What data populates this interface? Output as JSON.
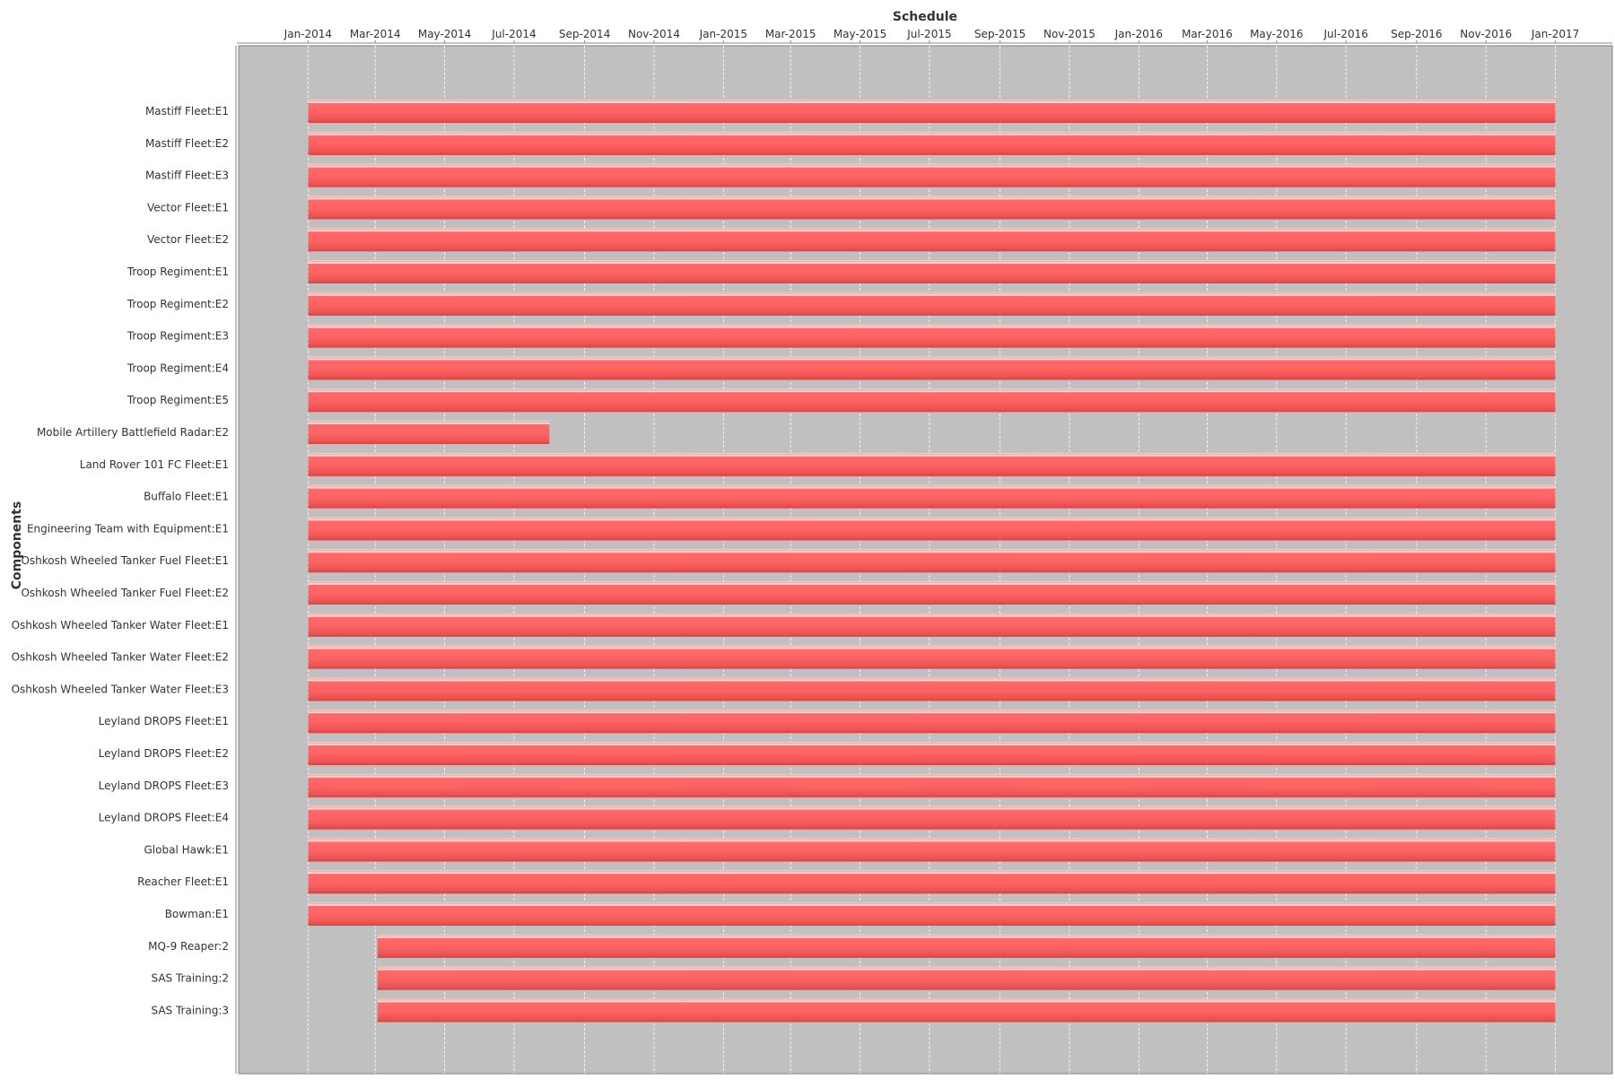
{
  "chart_data": {
    "type": "gantt",
    "title": "Schedule",
    "xlabel": "Schedule",
    "ylabel": "Components",
    "x_axis_position": "top",
    "x_range": [
      "2013-11-01",
      "2017-02-20"
    ],
    "x_ticks": [
      {
        "date": "2014-01-01",
        "label": "Jan-2014"
      },
      {
        "date": "2014-03-01",
        "label": "Mar-2014"
      },
      {
        "date": "2014-05-01",
        "label": "May-2014"
      },
      {
        "date": "2014-07-01",
        "label": "Jul-2014"
      },
      {
        "date": "2014-09-01",
        "label": "Sep-2014"
      },
      {
        "date": "2014-11-01",
        "label": "Nov-2014"
      },
      {
        "date": "2015-01-01",
        "label": "Jan-2015"
      },
      {
        "date": "2015-03-01",
        "label": "Mar-2015"
      },
      {
        "date": "2015-05-01",
        "label": "May-2015"
      },
      {
        "date": "2015-07-01",
        "label": "Jul-2015"
      },
      {
        "date": "2015-09-01",
        "label": "Sep-2015"
      },
      {
        "date": "2015-11-01",
        "label": "Nov-2015"
      },
      {
        "date": "2016-01-01",
        "label": "Jan-2016"
      },
      {
        "date": "2016-03-01",
        "label": "Mar-2016"
      },
      {
        "date": "2016-05-01",
        "label": "May-2016"
      },
      {
        "date": "2016-07-01",
        "label": "Jul-2016"
      },
      {
        "date": "2016-09-01",
        "label": "Sep-2016"
      },
      {
        "date": "2016-11-01",
        "label": "Nov-2016"
      },
      {
        "date": "2017-01-01",
        "label": "Jan-2017"
      }
    ],
    "tasks": [
      {
        "name": "Mastiff Fleet:E1",
        "start": "2014-01-01",
        "end": "2017-01-01"
      },
      {
        "name": "Mastiff Fleet:E2",
        "start": "2014-01-01",
        "end": "2017-01-01"
      },
      {
        "name": "Mastiff Fleet:E3",
        "start": "2014-01-01",
        "end": "2017-01-01"
      },
      {
        "name": "Vector Fleet:E1",
        "start": "2014-01-01",
        "end": "2017-01-01"
      },
      {
        "name": "Vector Fleet:E2",
        "start": "2014-01-01",
        "end": "2017-01-01"
      },
      {
        "name": "Troop Regiment:E1",
        "start": "2014-01-01",
        "end": "2017-01-01"
      },
      {
        "name": "Troop Regiment:E2",
        "start": "2014-01-01",
        "end": "2017-01-01"
      },
      {
        "name": "Troop Regiment:E3",
        "start": "2014-01-01",
        "end": "2017-01-01"
      },
      {
        "name": "Troop Regiment:E4",
        "start": "2014-01-01",
        "end": "2017-01-01"
      },
      {
        "name": "Troop Regiment:E5",
        "start": "2014-01-01",
        "end": "2017-01-01"
      },
      {
        "name": "Mobile Artillery Battlefield Radar:E2",
        "start": "2014-01-01",
        "end": "2014-08-01"
      },
      {
        "name": "Land Rover 101 FC Fleet:E1",
        "start": "2014-01-01",
        "end": "2017-01-01"
      },
      {
        "name": "Buffalo Fleet:E1",
        "start": "2014-01-01",
        "end": "2017-01-01"
      },
      {
        "name": "Engineering Team with Equipment:E1",
        "start": "2014-01-01",
        "end": "2017-01-01"
      },
      {
        "name": "Oshkosh Wheeled Tanker Fuel Fleet:E1",
        "start": "2014-01-01",
        "end": "2017-01-01"
      },
      {
        "name": "Oshkosh Wheeled Tanker Fuel Fleet:E2",
        "start": "2014-01-01",
        "end": "2017-01-01"
      },
      {
        "name": "Oshkosh Wheeled Tanker Water Fleet:E1",
        "start": "2014-01-01",
        "end": "2017-01-01"
      },
      {
        "name": "Oshkosh Wheeled Tanker Water Fleet:E2",
        "start": "2014-01-01",
        "end": "2017-01-01"
      },
      {
        "name": "Oshkosh Wheeled Tanker Water Fleet:E3",
        "start": "2014-01-01",
        "end": "2017-01-01"
      },
      {
        "name": "Leyland DROPS Fleet:E1",
        "start": "2014-01-01",
        "end": "2017-01-01"
      },
      {
        "name": "Leyland DROPS Fleet:E2",
        "start": "2014-01-01",
        "end": "2017-01-01"
      },
      {
        "name": "Leyland DROPS Fleet:E3",
        "start": "2014-01-01",
        "end": "2017-01-01"
      },
      {
        "name": "Leyland DROPS Fleet:E4",
        "start": "2014-01-01",
        "end": "2017-01-01"
      },
      {
        "name": "Global Hawk:E1",
        "start": "2014-01-01",
        "end": "2017-01-01"
      },
      {
        "name": "Reacher Fleet:E1",
        "start": "2014-01-01",
        "end": "2017-01-01"
      },
      {
        "name": "Bowman:E1",
        "start": "2014-01-01",
        "end": "2017-01-01"
      },
      {
        "name": "MQ-9 Reaper:2",
        "start": "2014-03-03",
        "end": "2017-01-01"
      },
      {
        "name": "SAS Training:2",
        "start": "2014-03-03",
        "end": "2017-01-01"
      },
      {
        "name": "SAS Training:3",
        "start": "2014-03-03",
        "end": "2017-01-01"
      }
    ],
    "grid": true,
    "legend": "none",
    "colors": {
      "plot_background": "#c0c0c0",
      "bar": "#ff6161",
      "bar_highlight": "#ffd6d6",
      "bar_shadow": "#e04848",
      "gridline": "#ffffff"
    }
  }
}
